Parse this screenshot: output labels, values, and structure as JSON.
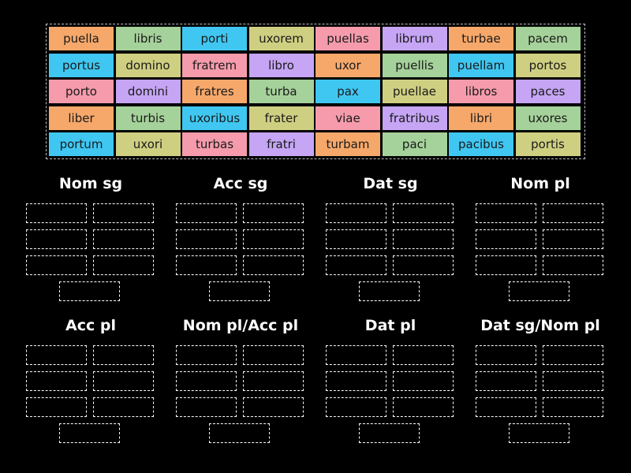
{
  "tiles": [
    {
      "text": "puella",
      "color": "#f6a86a"
    },
    {
      "text": "libris",
      "color": "#a5d19a"
    },
    {
      "text": "porti",
      "color": "#3fc7f2"
    },
    {
      "text": "uxorem",
      "color": "#cfcf82"
    },
    {
      "text": "puellas",
      "color": "#f59bac"
    },
    {
      "text": "librum",
      "color": "#c5a5f4"
    },
    {
      "text": "turbae",
      "color": "#f6a86a"
    },
    {
      "text": "pacem",
      "color": "#a5d19a"
    },
    {
      "text": "portus",
      "color": "#3fc7f2"
    },
    {
      "text": "domino",
      "color": "#cfcf82"
    },
    {
      "text": "fratrem",
      "color": "#f59bac"
    },
    {
      "text": "libro",
      "color": "#c5a5f4"
    },
    {
      "text": "uxor",
      "color": "#f6a86a"
    },
    {
      "text": "puellis",
      "color": "#a5d19a"
    },
    {
      "text": "puellam",
      "color": "#3fc7f2"
    },
    {
      "text": "portos",
      "color": "#cfcf82"
    },
    {
      "text": "porto",
      "color": "#f59bac"
    },
    {
      "text": "domini",
      "color": "#c5a5f4"
    },
    {
      "text": "fratres",
      "color": "#f6a86a"
    },
    {
      "text": "turba",
      "color": "#a5d19a"
    },
    {
      "text": "pax",
      "color": "#3fc7f2"
    },
    {
      "text": "puellae",
      "color": "#cfcf82"
    },
    {
      "text": "libros",
      "color": "#f59bac"
    },
    {
      "text": "paces",
      "color": "#c5a5f4"
    },
    {
      "text": "liber",
      "color": "#f6a86a"
    },
    {
      "text": "turbis",
      "color": "#a5d19a"
    },
    {
      "text": "uxoribus",
      "color": "#3fc7f2"
    },
    {
      "text": "frater",
      "color": "#cfcf82"
    },
    {
      "text": "viae",
      "color": "#f59bac"
    },
    {
      "text": "fratribus",
      "color": "#c5a5f4"
    },
    {
      "text": "libri",
      "color": "#f6a86a"
    },
    {
      "text": "uxores",
      "color": "#a5d19a"
    },
    {
      "text": "portum",
      "color": "#3fc7f2"
    },
    {
      "text": "uxori",
      "color": "#cfcf82"
    },
    {
      "text": "turbas",
      "color": "#f59bac"
    },
    {
      "text": "fratri",
      "color": "#c5a5f4"
    },
    {
      "text": "turbam",
      "color": "#f6a86a"
    },
    {
      "text": "paci",
      "color": "#a5d19a"
    },
    {
      "text": "pacibus",
      "color": "#3fc7f2"
    },
    {
      "text": "portis",
      "color": "#cfcf82"
    }
  ],
  "groups": [
    {
      "title": "Nom sg"
    },
    {
      "title": "Acc sg"
    },
    {
      "title": "Dat sg"
    },
    {
      "title": "Nom pl"
    },
    {
      "title": "Acc pl"
    },
    {
      "title": "Nom pl/Acc pl"
    },
    {
      "title": "Dat pl"
    },
    {
      "title": "Dat sg/Nom pl"
    }
  ]
}
